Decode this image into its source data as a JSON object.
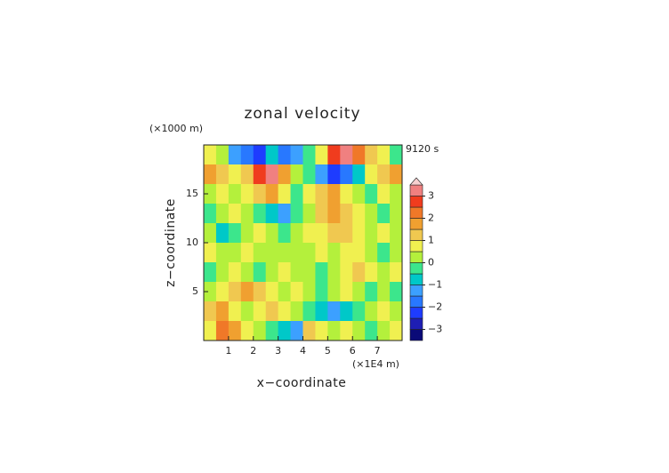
{
  "chart_data": {
    "type": "contour",
    "title": "zonal velocity",
    "y_unit": "(×1000 m)",
    "time_label": "9120 s",
    "xlabel": "x−coordinate",
    "ylabel": "z−coordinate",
    "x_unit": "(×1E4 m)",
    "xlim": [
      0,
      8
    ],
    "ylim": [
      0,
      20
    ],
    "xticks": [
      1,
      2,
      3,
      4,
      5,
      6,
      7
    ],
    "yticks": [
      5,
      10,
      15
    ],
    "x": [
      0.25,
      0.75,
      1.25,
      1.75,
      2.25,
      2.75,
      3.25,
      3.75,
      4.25,
      4.75,
      5.25,
      5.75,
      6.25,
      6.75,
      7.25,
      7.75
    ],
    "y": [
      19,
      17,
      15,
      13,
      11,
      9,
      7,
      5,
      3,
      1
    ],
    "z": [
      [
        0.5,
        0,
        -1.5,
        -2,
        -2.5,
        -1,
        -2,
        -1.5,
        -0.5,
        0.5,
        2.5,
        3,
        2,
        1,
        0.5,
        -0.5
      ],
      [
        1.5,
        1,
        0.5,
        1,
        2.5,
        3,
        1.5,
        0,
        -0.5,
        -1.5,
        -2.5,
        -2,
        -1,
        0.5,
        1,
        1.5
      ],
      [
        0,
        0.5,
        0,
        0.5,
        1,
        1.5,
        0.5,
        -0.5,
        0.5,
        1,
        1.5,
        0.5,
        0,
        -0.5,
        0.5,
        0
      ],
      [
        -0.5,
        0,
        0.5,
        0,
        -0.5,
        -1,
        -1.5,
        -0.5,
        0,
        1,
        1.5,
        1,
        0.5,
        0,
        -0.5,
        0
      ],
      [
        0,
        -1,
        -0.5,
        0,
        0.5,
        0,
        -0.5,
        0,
        0.5,
        0.5,
        1,
        1,
        0.5,
        0,
        0.5,
        0
      ],
      [
        0.5,
        0,
        0,
        0.5,
        0,
        0,
        0,
        0,
        0,
        0.5,
        0,
        0.5,
        0.5,
        0,
        -0.5,
        0
      ],
      [
        -0.5,
        0,
        0.5,
        0,
        -0.5,
        0,
        0.5,
        0,
        0,
        -0.5,
        0,
        0.5,
        1,
        0.5,
        0,
        0.5
      ],
      [
        0,
        0.5,
        1,
        1.5,
        1,
        0.5,
        0,
        0.5,
        0,
        -0.5,
        0,
        0.5,
        0,
        -0.5,
        0,
        -0.5
      ],
      [
        1,
        1.5,
        0.5,
        0,
        0.5,
        1,
        0.5,
        0,
        -0.5,
        -1,
        -1.5,
        -1,
        -0.5,
        0,
        0.5,
        0
      ],
      [
        0.5,
        2,
        1.5,
        0.5,
        0,
        -0.5,
        -1,
        -1.5,
        1,
        0.5,
        0,
        0.5,
        0,
        -0.5,
        0,
        0.5
      ]
    ],
    "levels": [
      -3.5,
      -3,
      -2.5,
      -2,
      -1.5,
      -1,
      -0.5,
      0,
      0.5,
      1,
      1.5,
      2,
      2.5,
      3,
      3.5
    ],
    "colors": [
      "#0a0a78",
      "#1e1eb4",
      "#1e3cff",
      "#2878ff",
      "#3ca0ff",
      "#00c8c8",
      "#3ce68c",
      "#b4f03c",
      "#f0f050",
      "#f0c850",
      "#f0a030",
      "#f07828",
      "#f03c1e",
      "#f08080",
      "#f0a8a8"
    ],
    "over_color": "#f8d0d0",
    "cbar_ticks": [
      {
        "value": -3,
        "label": "−3"
      },
      {
        "value": -2,
        "label": "−2"
      },
      {
        "value": -1,
        "label": "−1"
      },
      0,
      1,
      2,
      3
    ]
  }
}
